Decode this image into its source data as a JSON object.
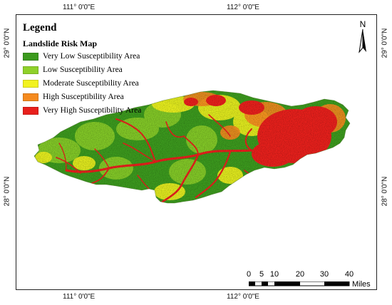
{
  "coordinates": {
    "top": [
      "111° 0'0\"E",
      "112° 0'0\"E"
    ],
    "bottom": [
      "111° 0'0\"E",
      "112° 0'0\"E"
    ],
    "left": [
      "29° 0'0\"N",
      "28° 0'0\"N"
    ],
    "right": [
      "29° 0'0\"N",
      "28° 0'0\"N"
    ]
  },
  "legend": {
    "title": "Legend",
    "subtitle": "Landslide Risk Map",
    "items": [
      {
        "label": "Very Low Susceptibility Area",
        "color": "#3c9a1e"
      },
      {
        "label": "Low Susceptibility Area",
        "color": "#8fd12a"
      },
      {
        "label": "Moderate Susceptibility Area",
        "color": "#f2f21f"
      },
      {
        "label": "High Susceptibility Area",
        "color": "#f58a1e"
      },
      {
        "label": "Very High Susceptibility Area",
        "color": "#e8201c"
      }
    ]
  },
  "north_arrow": {
    "label": "N"
  },
  "scale_bar": {
    "ticks": [
      "0",
      "5",
      "10",
      "20",
      "30",
      "40"
    ],
    "unit": "Miles"
  }
}
